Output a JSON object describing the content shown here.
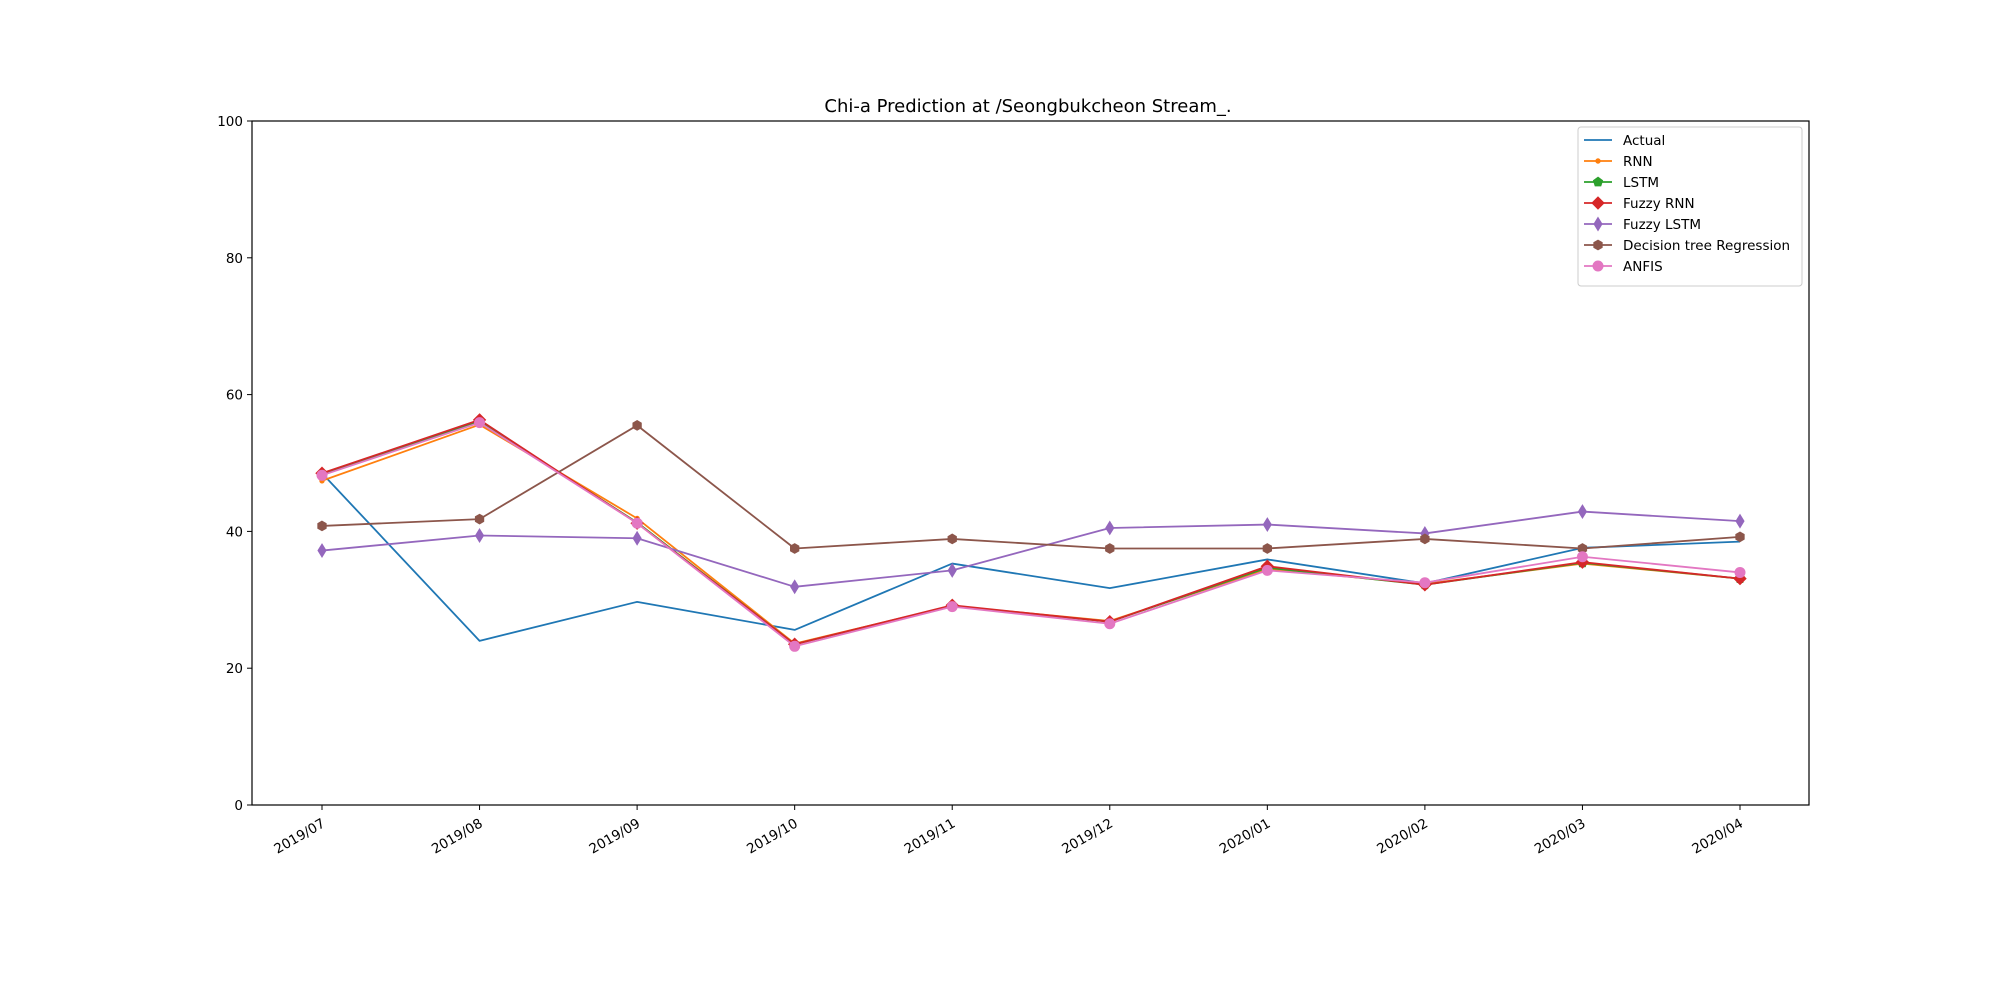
{
  "chart_data": {
    "type": "line",
    "title": "Chi-a Prediction at /Seongbukcheon Stream_.",
    "xlabel": "",
    "ylabel": "",
    "ylim": [
      0,
      100
    ],
    "yticks": [
      "0",
      "20",
      "40",
      "60",
      "80",
      "100"
    ],
    "categories": [
      "2019/07",
      "2019/08",
      "2019/09",
      "2019/10",
      "2019/11",
      "2019/12",
      "2020/01",
      "2020/02",
      "2020/03",
      "2020/04"
    ],
    "grid": false,
    "legend_position": "top-right",
    "series": [
      {
        "name": "Actual",
        "color": "#1f77b4",
        "marker": "none",
        "values": [
          48.5,
          24.0,
          29.7,
          25.6,
          35.3,
          31.7,
          35.9,
          32.4,
          37.6,
          38.5
        ]
      },
      {
        "name": "RNN",
        "color": "#ff7f0e",
        "marker": "point",
        "values": [
          47.4,
          55.6,
          41.9,
          23.6,
          29.1,
          26.9,
          34.5,
          32.3,
          35.3,
          33.1
        ]
      },
      {
        "name": "LSTM",
        "color": "#2ca02c",
        "marker": "pentagon",
        "values": [
          48.4,
          56.1,
          41.3,
          23.5,
          29.1,
          26.8,
          34.7,
          32.2,
          35.4,
          33.1
        ]
      },
      {
        "name": "Fuzzy RNN",
        "color": "#d62728",
        "marker": "diamond",
        "values": [
          48.5,
          56.3,
          41.2,
          23.5,
          29.2,
          26.8,
          34.9,
          32.2,
          35.5,
          33.1
        ]
      },
      {
        "name": "Fuzzy LSTM",
        "color": "#9467bd",
        "marker": "thin_diamond",
        "values": [
          37.2,
          39.4,
          39.0,
          31.9,
          34.3,
          40.5,
          41.0,
          39.7,
          42.9,
          41.5
        ]
      },
      {
        "name": "Decision tree Regression",
        "color": "#8c564b",
        "marker": "hexagon",
        "values": [
          40.8,
          41.8,
          55.5,
          37.5,
          38.9,
          37.5,
          37.5,
          38.9,
          37.5,
          39.2
        ]
      },
      {
        "name": "ANFIS",
        "color": "#e377c2",
        "marker": "circle",
        "values": [
          48.2,
          55.9,
          41.2,
          23.2,
          29.0,
          26.5,
          34.3,
          32.5,
          36.3,
          34.0
        ]
      }
    ]
  }
}
